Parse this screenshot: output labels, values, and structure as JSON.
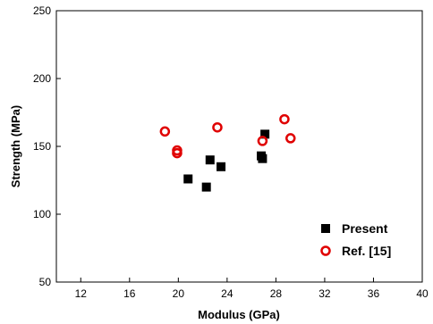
{
  "chart_data": {
    "type": "scatter",
    "xlabel": "Modulus (GPa)",
    "ylabel": "Strength (MPa)",
    "xlim": [
      10,
      40
    ],
    "ylim": [
      50,
      250
    ],
    "xticks": [
      12,
      16,
      20,
      24,
      28,
      32,
      36,
      40
    ],
    "yticks": [
      50,
      100,
      150,
      200,
      250
    ],
    "grid": false,
    "legend_position": "bottom-right",
    "series": [
      {
        "name": "Present",
        "marker": "filled-square",
        "color": "#000000",
        "points": [
          {
            "x": 20.8,
            "y": 126
          },
          {
            "x": 22.3,
            "y": 120
          },
          {
            "x": 22.6,
            "y": 140
          },
          {
            "x": 23.5,
            "y": 135
          },
          {
            "x": 26.8,
            "y": 143
          },
          {
            "x": 26.9,
            "y": 141
          },
          {
            "x": 27.1,
            "y": 159
          }
        ]
      },
      {
        "name": "Ref. [15]",
        "marker": "open-circle",
        "color": "#e00000",
        "points": [
          {
            "x": 18.9,
            "y": 161
          },
          {
            "x": 19.9,
            "y": 147
          },
          {
            "x": 19.9,
            "y": 145
          },
          {
            "x": 23.2,
            "y": 164
          },
          {
            "x": 26.9,
            "y": 154
          },
          {
            "x": 28.7,
            "y": 170
          },
          {
            "x": 29.2,
            "y": 156
          }
        ]
      }
    ]
  }
}
